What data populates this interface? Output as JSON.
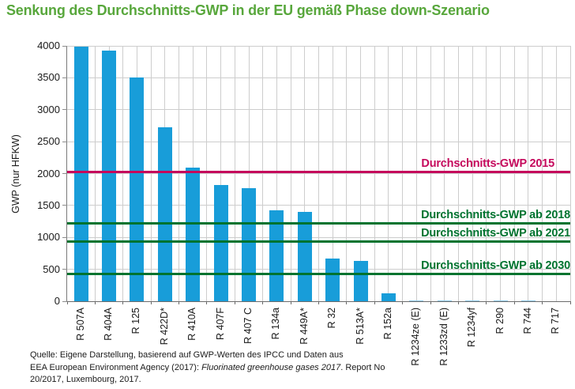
{
  "chart_data": {
    "type": "bar",
    "title": "Senkung des Durchschnitts-GWP in der EU gemäß Phase down-Szenario",
    "xlabel": "",
    "ylabel": "GWP (nur HFKW)",
    "ylim": [
      0,
      4000
    ],
    "ytick_step": 500,
    "grid": "on",
    "bar_color": "#189dd9",
    "categories": [
      "R 507A",
      "R 404A",
      "R 125",
      "R 422D*",
      "R 410A",
      "R 407F",
      "R 407 C",
      "R 134a",
      "R 449A*",
      "R 32",
      "R 513A*",
      "R 152a",
      "R 1234ze (E)",
      "R 1233zd (E)",
      "R 1234yf",
      "R 290",
      "R 744",
      "R 717"
    ],
    "values": [
      3985,
      3922,
      3500,
      2729,
      2088,
      1825,
      1774,
      1430,
      1397,
      675,
      631,
      124,
      7,
      5,
      4,
      3,
      1,
      0
    ],
    "reference_lines": [
      {
        "label": "Durchschnitts-GWP 2015",
        "value": 2020,
        "color": "#c5095c"
      },
      {
        "label": "Durchschnitts-GWP ab 2018",
        "value": 1220,
        "color": "#00732f"
      },
      {
        "label": "Durchschnitts-GWP ab 2021",
        "value": 930,
        "color": "#00732f"
      },
      {
        "label": "Durchschnitts-GWP ab 2030",
        "value": 425,
        "color": "#00732f"
      }
    ]
  },
  "colors": {
    "title": "#58a73c",
    "bar": "#189dd9",
    "pink_line": "#c5095c",
    "green_line": "#00732f",
    "grid": "#cdcdcd",
    "axis": "#7a7a7a"
  },
  "footer": {
    "line1": "Quelle: Eigene Darstellung, basierend auf GWP-Werten des IPCC und Daten aus",
    "line2_pre": "EEA European Environment Agency  (2017): ",
    "line2_italic": "Fluorinated greenhouse gases 2017",
    "line2_post": ". Report No",
    "line3": "20/2017, Luxembourg, 2017."
  }
}
